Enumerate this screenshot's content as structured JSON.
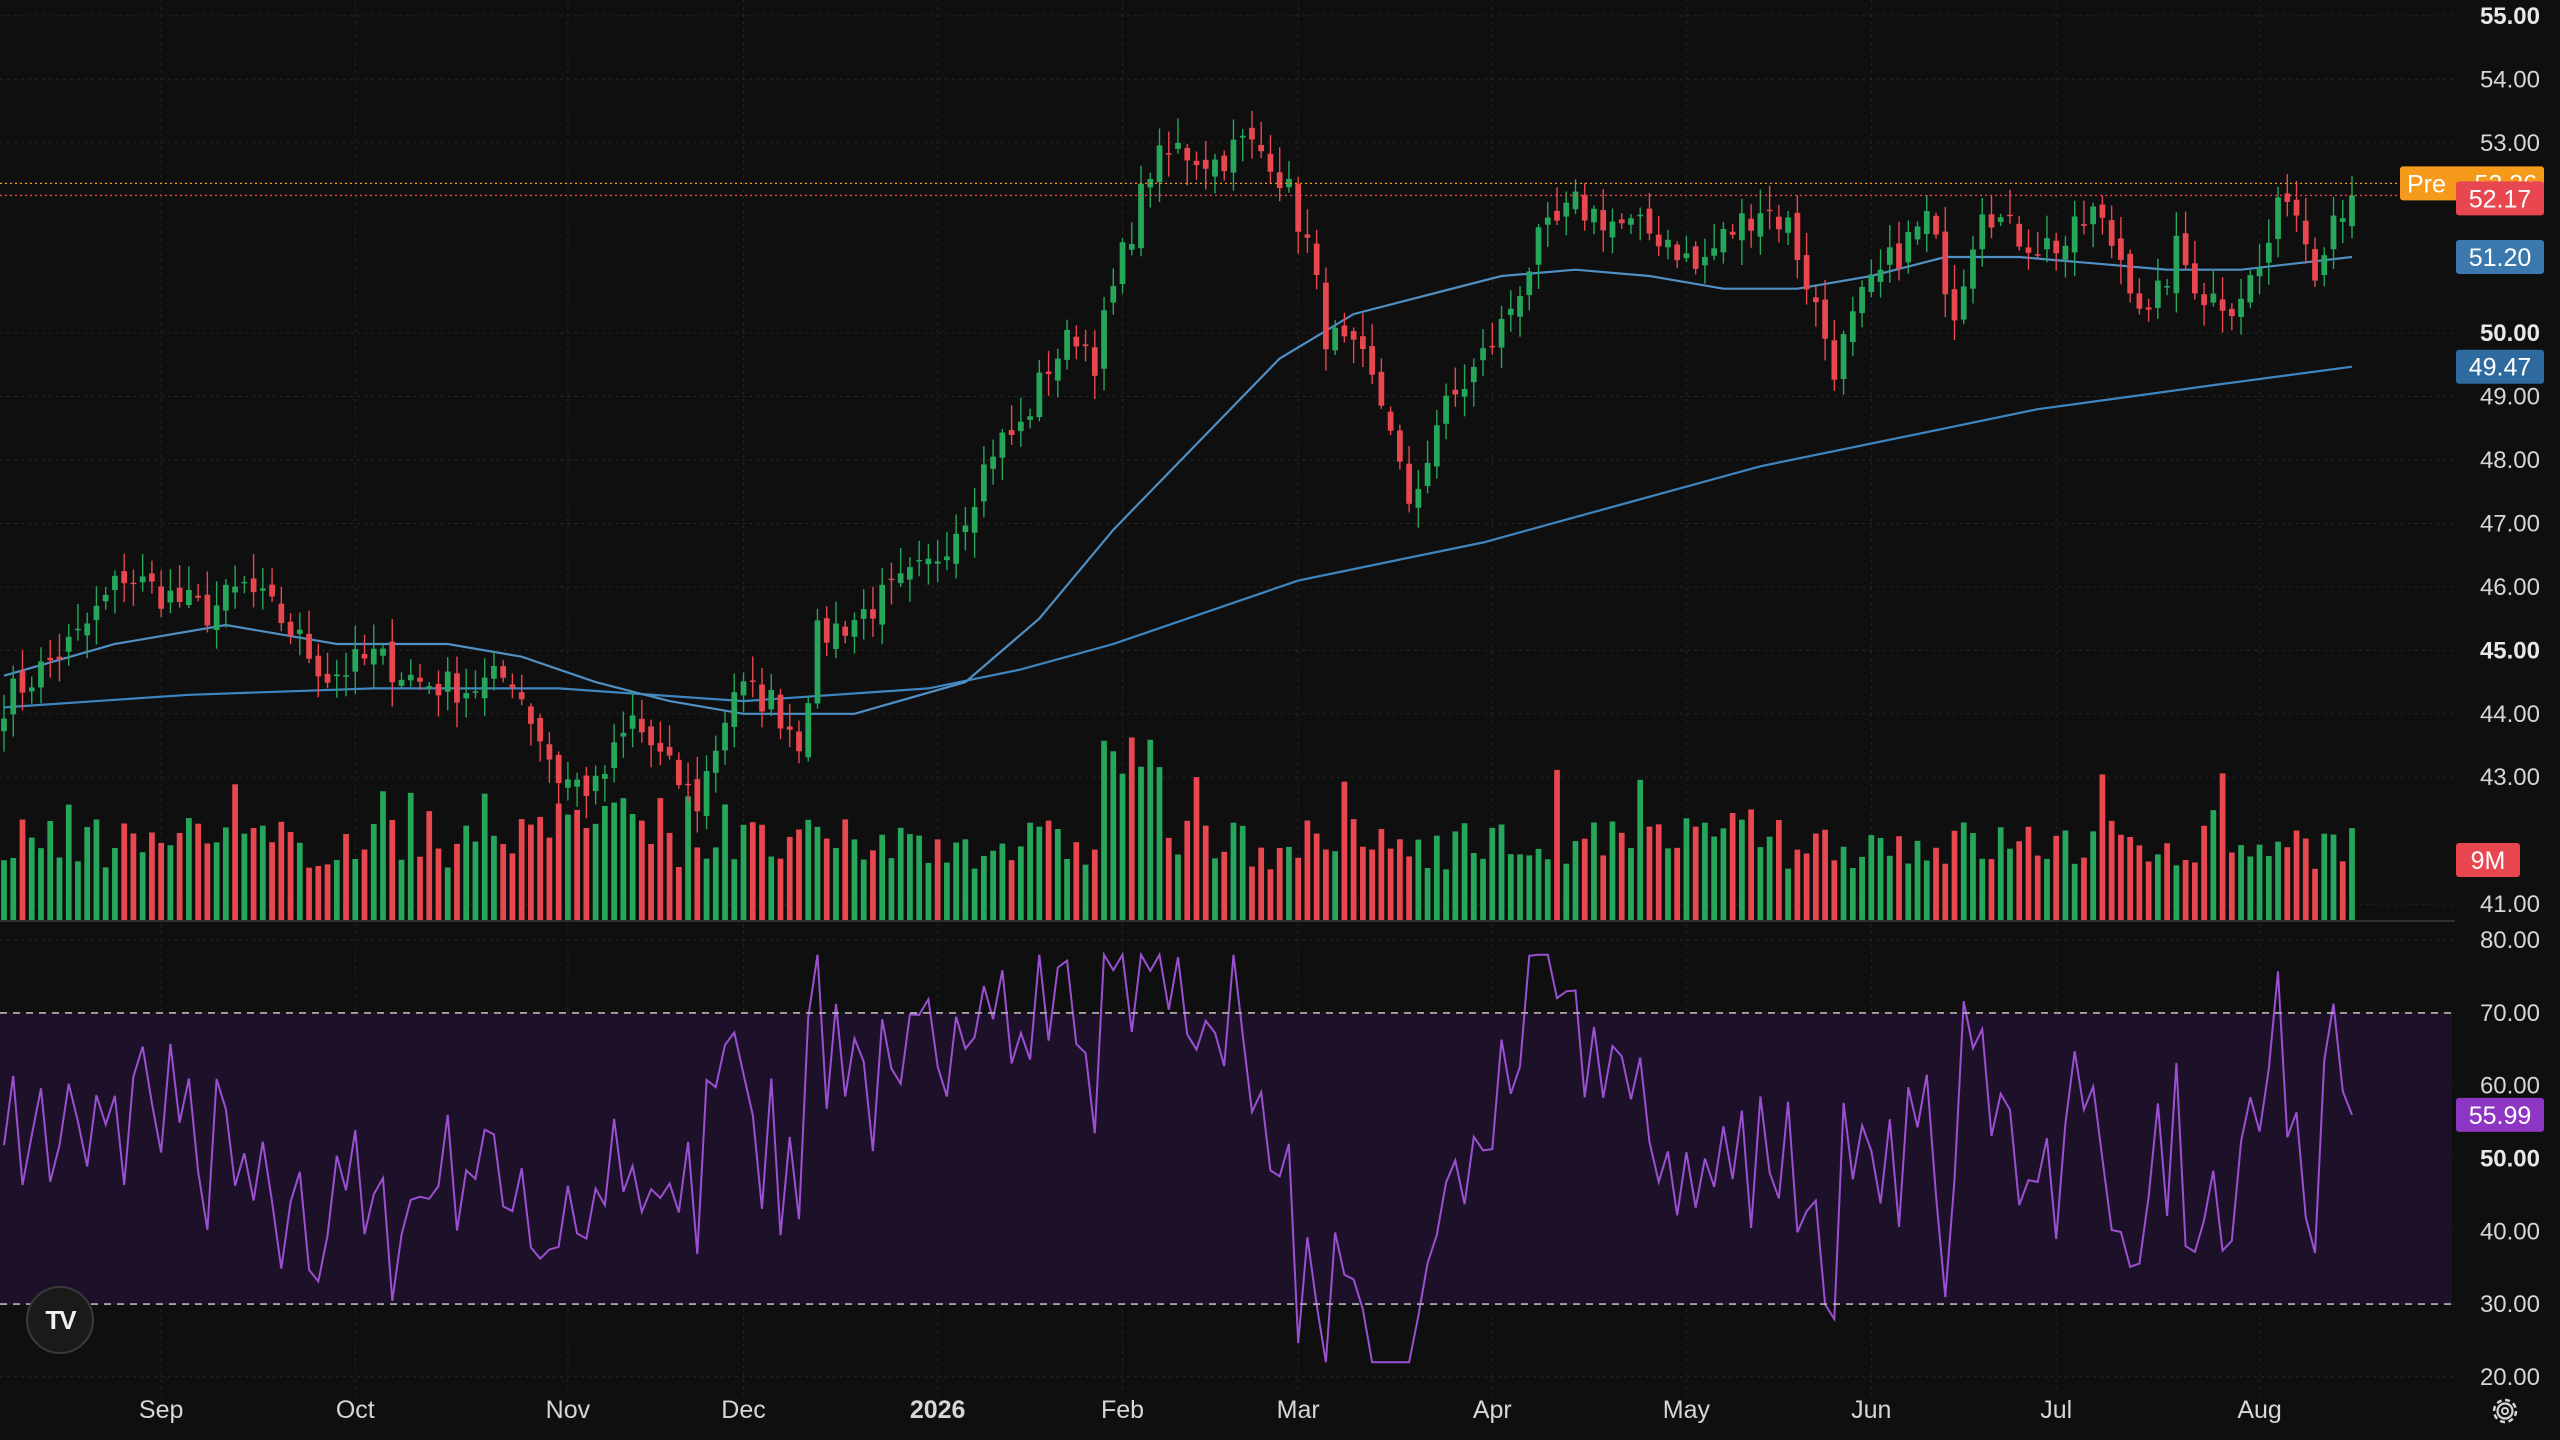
{
  "logo": {
    "text": "TV"
  },
  "colors": {
    "background": "#0f0f0f",
    "grid": "#262626",
    "up": "#26a65b",
    "down": "#e8474f",
    "ma_short": "#4f8fc4",
    "ma_long": "#3f86c0",
    "rsi_line": "#9b4fd1",
    "rsi_band": "#1d1129",
    "pre_market": "#f59a1a",
    "last_price": "#e8474f"
  },
  "chart_data": {
    "type": "candlestick",
    "x_axis": {
      "labels": [
        {
          "label": "Sep",
          "index": 17,
          "bold": false
        },
        {
          "label": "Oct",
          "index": 38,
          "bold": false
        },
        {
          "label": "Nov",
          "index": 61,
          "bold": false
        },
        {
          "label": "Dec",
          "index": 80,
          "bold": false
        },
        {
          "label": "2026",
          "index": 101,
          "bold": true
        },
        {
          "label": "Feb",
          "index": 121,
          "bold": false
        },
        {
          "label": "Mar",
          "index": 140,
          "bold": false
        },
        {
          "label": "Apr",
          "index": 161,
          "bold": false
        },
        {
          "label": "May",
          "index": 182,
          "bold": false
        },
        {
          "label": "Jun",
          "index": 202,
          "bold": false
        },
        {
          "label": "Jul",
          "index": 222,
          "bold": false
        },
        {
          "label": "Aug",
          "index": 244,
          "bold": false
        }
      ]
    },
    "price_panel": {
      "ylim": [
        40.75,
        55.25
      ],
      "ticks": [
        {
          "v": 55,
          "label": "55.00",
          "bold": true
        },
        {
          "v": 54,
          "label": "54.00",
          "bold": false
        },
        {
          "v": 53,
          "label": "53.00",
          "bold": false
        },
        {
          "v": 50,
          "label": "50.00",
          "bold": true
        },
        {
          "v": 49,
          "label": "49.00",
          "bold": false
        },
        {
          "v": 48,
          "label": "48.00",
          "bold": false
        },
        {
          "v": 47,
          "label": "47.00",
          "bold": false
        },
        {
          "v": 46,
          "label": "46.00",
          "bold": false
        },
        {
          "v": 45,
          "label": "45.00",
          "bold": true
        },
        {
          "v": 44,
          "label": "44.00",
          "bold": false
        },
        {
          "v": 43,
          "label": "43.00",
          "bold": false
        },
        {
          "v": 41,
          "label": "41.00",
          "bold": false
        }
      ],
      "close_anchors": [
        [
          0,
          44.2
        ],
        [
          8,
          45.2
        ],
        [
          13,
          46.2
        ],
        [
          17,
          45.9
        ],
        [
          22,
          45.6
        ],
        [
          26,
          46.0
        ],
        [
          30,
          45.5
        ],
        [
          35,
          44.6
        ],
        [
          40,
          44.9
        ],
        [
          45,
          44.5
        ],
        [
          50,
          44.4
        ],
        [
          55,
          44.6
        ],
        [
          60,
          43.0
        ],
        [
          64,
          42.8
        ],
        [
          68,
          43.9
        ],
        [
          72,
          43.1
        ],
        [
          75,
          42.6
        ],
        [
          79,
          44.4
        ],
        [
          83,
          44.2
        ],
        [
          86,
          43.6
        ],
        [
          88,
          45.2
        ],
        [
          92,
          45.5
        ],
        [
          97,
          46.0
        ],
        [
          100,
          46.3
        ],
        [
          104,
          47.2
        ],
        [
          107,
          48.2
        ],
        [
          110,
          48.5
        ],
        [
          113,
          49.5
        ],
        [
          116,
          50.0
        ],
        [
          118,
          49.6
        ],
        [
          121,
          51.2
        ],
        [
          124,
          52.6
        ],
        [
          127,
          52.9
        ],
        [
          131,
          52.7
        ],
        [
          134,
          53.0
        ],
        [
          137,
          52.8
        ],
        [
          139,
          52.2
        ],
        [
          141,
          51.4
        ],
        [
          143,
          50.0
        ],
        [
          147,
          49.5
        ],
        [
          150,
          48.6
        ],
        [
          152,
          47.1
        ],
        [
          155,
          48.6
        ],
        [
          159,
          49.4
        ],
        [
          162,
          50.1
        ],
        [
          166,
          51.4
        ],
        [
          170,
          52.0
        ],
        [
          175,
          51.7
        ],
        [
          180,
          51.5
        ],
        [
          183,
          51.0
        ],
        [
          186,
          51.5
        ],
        [
          190,
          52.0
        ],
        [
          193,
          51.7
        ],
        [
          196,
          50.4
        ],
        [
          198,
          49.5
        ],
        [
          201,
          50.5
        ],
        [
          204,
          51.1
        ],
        [
          208,
          51.8
        ],
        [
          211,
          50.4
        ],
        [
          214,
          52.1
        ],
        [
          217,
          51.6
        ],
        [
          220,
          51.4
        ],
        [
          223,
          51.4
        ],
        [
          226,
          51.9
        ],
        [
          229,
          51.2
        ],
        [
          232,
          50.2
        ],
        [
          235,
          51.3
        ],
        [
          238,
          50.6
        ],
        [
          241,
          50.5
        ],
        [
          244,
          51.0
        ],
        [
          247,
          52.3
        ],
        [
          250,
          51.1
        ],
        [
          252,
          51.9
        ],
        [
          254,
          52.17
        ]
      ],
      "ma50": [
        [
          0,
          44.6
        ],
        [
          12,
          45.1
        ],
        [
          24,
          45.4
        ],
        [
          36,
          45.1
        ],
        [
          48,
          45.1
        ],
        [
          56,
          44.9
        ],
        [
          64,
          44.5
        ],
        [
          72,
          44.2
        ],
        [
          80,
          44.0
        ],
        [
          92,
          44.0
        ],
        [
          104,
          44.5
        ],
        [
          112,
          45.5
        ],
        [
          120,
          46.9
        ],
        [
          130,
          48.4
        ],
        [
          138,
          49.6
        ],
        [
          146,
          50.3
        ],
        [
          154,
          50.6
        ],
        [
          162,
          50.9
        ],
        [
          170,
          51.0
        ],
        [
          178,
          50.9
        ],
        [
          186,
          50.7
        ],
        [
          194,
          50.7
        ],
        [
          202,
          50.9
        ],
        [
          210,
          51.2
        ],
        [
          218,
          51.2
        ],
        [
          226,
          51.1
        ],
        [
          234,
          51.0
        ],
        [
          242,
          51.0
        ],
        [
          254,
          51.2
        ]
      ],
      "ma200": [
        [
          0,
          44.1
        ],
        [
          20,
          44.3
        ],
        [
          40,
          44.4
        ],
        [
          60,
          44.4
        ],
        [
          80,
          44.2
        ],
        [
          100,
          44.4
        ],
        [
          110,
          44.7
        ],
        [
          120,
          45.1
        ],
        [
          130,
          45.6
        ],
        [
          140,
          46.1
        ],
        [
          150,
          46.4
        ],
        [
          160,
          46.7
        ],
        [
          170,
          47.1
        ],
        [
          180,
          47.5
        ],
        [
          190,
          47.9
        ],
        [
          200,
          48.2
        ],
        [
          210,
          48.5
        ],
        [
          220,
          48.8
        ],
        [
          230,
          49.0
        ],
        [
          240,
          49.2
        ],
        [
          254,
          49.47
        ]
      ],
      "bar_count": 255,
      "badges": [
        {
          "label": "52.36",
          "value": 52.36,
          "prefix": "Pre",
          "kind": "pre"
        },
        {
          "label": "52.17",
          "value": 52.17,
          "kind": "last"
        },
        {
          "label": "51.20",
          "value": 51.2,
          "kind": "ma50"
        },
        {
          "label": "49.47",
          "value": 49.47,
          "kind": "ma200"
        }
      ]
    },
    "volume": {
      "last_label": "9M",
      "max_relative": 1.0
    },
    "rsi_panel": {
      "ylim": [
        17.5,
        82.5
      ],
      "upper_band": 70,
      "lower_band": 30,
      "ticks": [
        {
          "v": 80,
          "label": "80.00",
          "bold": false
        },
        {
          "v": 70,
          "label": "70.00",
          "bold": false
        },
        {
          "v": 60,
          "label": "60.00",
          "bold": false
        },
        {
          "v": 50,
          "label": "50.00",
          "bold": true
        },
        {
          "v": 40,
          "label": "40.00",
          "bold": false
        },
        {
          "v": 30,
          "label": "30.00",
          "bold": false
        },
        {
          "v": 20,
          "label": "20.00",
          "bold": false
        }
      ],
      "last_value_label": "55.99",
      "last_value": 55.99
    }
  }
}
